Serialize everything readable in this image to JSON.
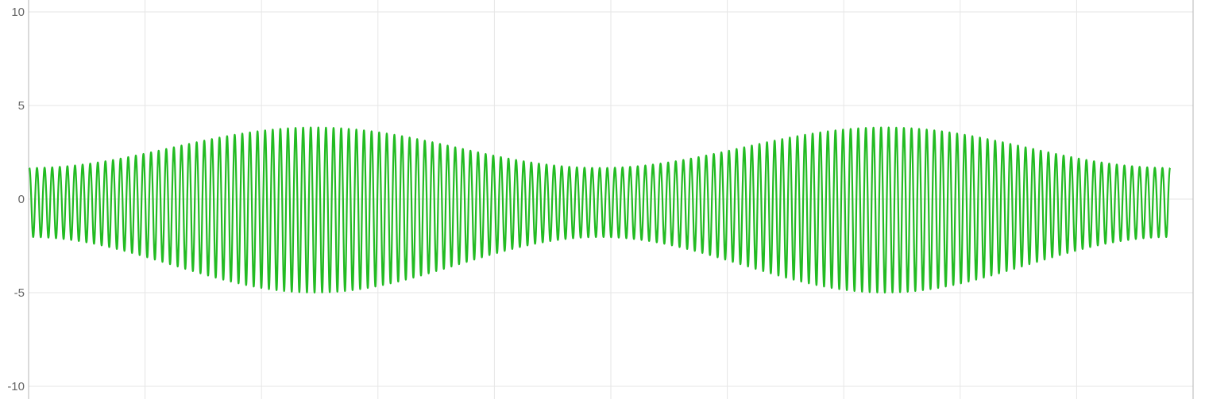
{
  "chart_data": {
    "type": "line",
    "title": "",
    "xlabel": "",
    "ylabel": "",
    "ylim": [
      -10,
      10
    ],
    "yticks": [
      "10",
      "5",
      "0",
      "-5",
      "-10"
    ],
    "y_tick_values": [
      10,
      5,
      0,
      -5,
      -10
    ],
    "xlim": [
      0,
      1
    ],
    "x_grid_count": 10,
    "grid": true,
    "legend": "none",
    "series": [
      {
        "color": "#22bb22",
        "carrier_cycles": 150,
        "envelope_periods": 2,
        "envelope_min": 1.8,
        "envelope_max": 4.3,
        "positive_skew": 0.85,
        "negative_skew": 1.3
      }
    ]
  }
}
